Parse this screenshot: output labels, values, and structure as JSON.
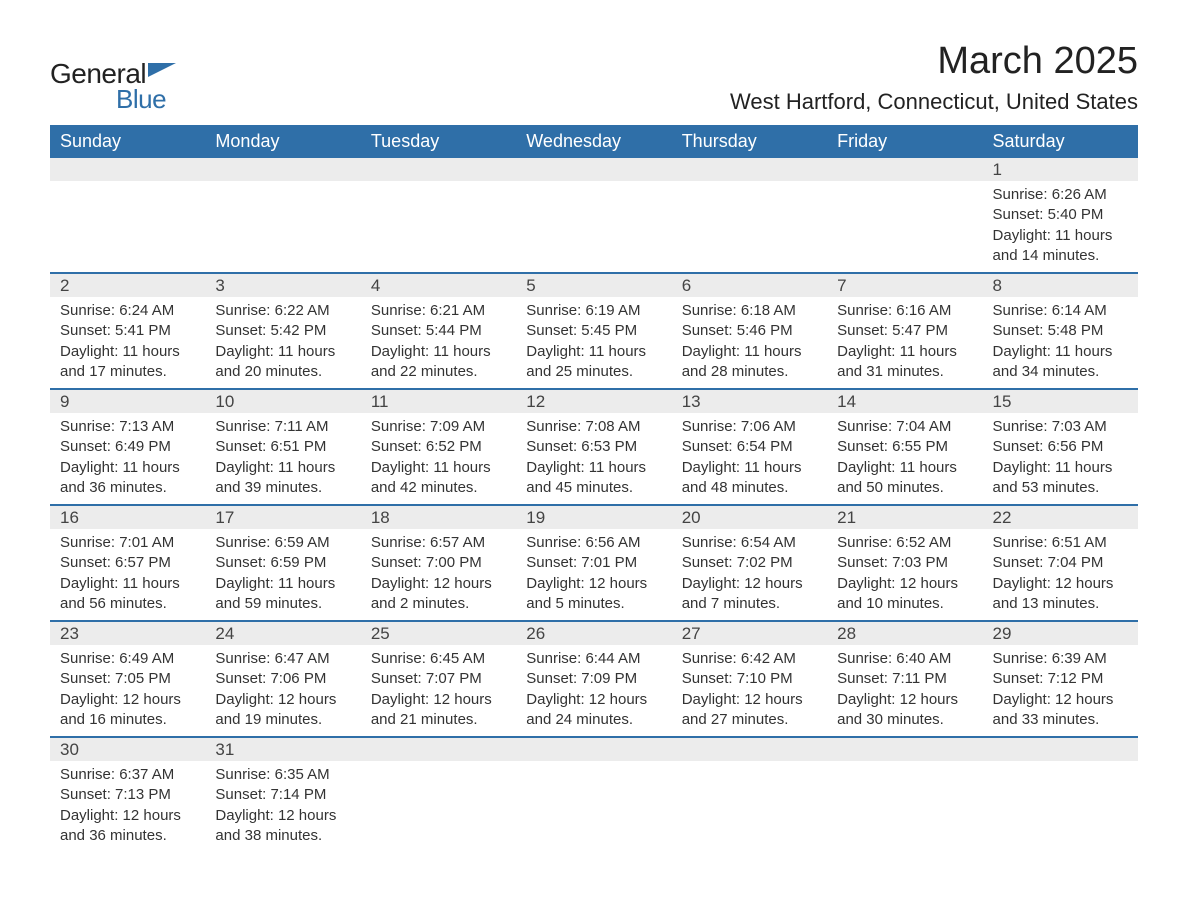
{
  "logo": {
    "textA": "General",
    "textB": "Blue",
    "flag_color": "#2f6fa8"
  },
  "title": "March 2025",
  "location": "West Hartford, Connecticut, United States",
  "header_bg": "#2f6fa8",
  "header_fg": "#ffffff",
  "daynum_bg": "#ececec",
  "row_border": "#2f6fa8",
  "days_header": [
    "Sunday",
    "Monday",
    "Tuesday",
    "Wednesday",
    "Thursday",
    "Friday",
    "Saturday"
  ],
  "weeks": [
    {
      "nums": [
        "",
        "",
        "",
        "",
        "",
        "",
        "1"
      ],
      "cells": [
        "",
        "",
        "",
        "",
        "",
        "",
        "Sunrise: 6:26 AM\nSunset: 5:40 PM\nDaylight: 11 hours and 14 minutes."
      ]
    },
    {
      "nums": [
        "2",
        "3",
        "4",
        "5",
        "6",
        "7",
        "8"
      ],
      "cells": [
        "Sunrise: 6:24 AM\nSunset: 5:41 PM\nDaylight: 11 hours and 17 minutes.",
        "Sunrise: 6:22 AM\nSunset: 5:42 PM\nDaylight: 11 hours and 20 minutes.",
        "Sunrise: 6:21 AM\nSunset: 5:44 PM\nDaylight: 11 hours and 22 minutes.",
        "Sunrise: 6:19 AM\nSunset: 5:45 PM\nDaylight: 11 hours and 25 minutes.",
        "Sunrise: 6:18 AM\nSunset: 5:46 PM\nDaylight: 11 hours and 28 minutes.",
        "Sunrise: 6:16 AM\nSunset: 5:47 PM\nDaylight: 11 hours and 31 minutes.",
        "Sunrise: 6:14 AM\nSunset: 5:48 PM\nDaylight: 11 hours and 34 minutes."
      ]
    },
    {
      "nums": [
        "9",
        "10",
        "11",
        "12",
        "13",
        "14",
        "15"
      ],
      "cells": [
        "Sunrise: 7:13 AM\nSunset: 6:49 PM\nDaylight: 11 hours and 36 minutes.",
        "Sunrise: 7:11 AM\nSunset: 6:51 PM\nDaylight: 11 hours and 39 minutes.",
        "Sunrise: 7:09 AM\nSunset: 6:52 PM\nDaylight: 11 hours and 42 minutes.",
        "Sunrise: 7:08 AM\nSunset: 6:53 PM\nDaylight: 11 hours and 45 minutes.",
        "Sunrise: 7:06 AM\nSunset: 6:54 PM\nDaylight: 11 hours and 48 minutes.",
        "Sunrise: 7:04 AM\nSunset: 6:55 PM\nDaylight: 11 hours and 50 minutes.",
        "Sunrise: 7:03 AM\nSunset: 6:56 PM\nDaylight: 11 hours and 53 minutes."
      ]
    },
    {
      "nums": [
        "16",
        "17",
        "18",
        "19",
        "20",
        "21",
        "22"
      ],
      "cells": [
        "Sunrise: 7:01 AM\nSunset: 6:57 PM\nDaylight: 11 hours and 56 minutes.",
        "Sunrise: 6:59 AM\nSunset: 6:59 PM\nDaylight: 11 hours and 59 minutes.",
        "Sunrise: 6:57 AM\nSunset: 7:00 PM\nDaylight: 12 hours and 2 minutes.",
        "Sunrise: 6:56 AM\nSunset: 7:01 PM\nDaylight: 12 hours and 5 minutes.",
        "Sunrise: 6:54 AM\nSunset: 7:02 PM\nDaylight: 12 hours and 7 minutes.",
        "Sunrise: 6:52 AM\nSunset: 7:03 PM\nDaylight: 12 hours and 10 minutes.",
        "Sunrise: 6:51 AM\nSunset: 7:04 PM\nDaylight: 12 hours and 13 minutes."
      ]
    },
    {
      "nums": [
        "23",
        "24",
        "25",
        "26",
        "27",
        "28",
        "29"
      ],
      "cells": [
        "Sunrise: 6:49 AM\nSunset: 7:05 PM\nDaylight: 12 hours and 16 minutes.",
        "Sunrise: 6:47 AM\nSunset: 7:06 PM\nDaylight: 12 hours and 19 minutes.",
        "Sunrise: 6:45 AM\nSunset: 7:07 PM\nDaylight: 12 hours and 21 minutes.",
        "Sunrise: 6:44 AM\nSunset: 7:09 PM\nDaylight: 12 hours and 24 minutes.",
        "Sunrise: 6:42 AM\nSunset: 7:10 PM\nDaylight: 12 hours and 27 minutes.",
        "Sunrise: 6:40 AM\nSunset: 7:11 PM\nDaylight: 12 hours and 30 minutes.",
        "Sunrise: 6:39 AM\nSunset: 7:12 PM\nDaylight: 12 hours and 33 minutes."
      ]
    },
    {
      "nums": [
        "30",
        "31",
        "",
        "",
        "",
        "",
        ""
      ],
      "cells": [
        "Sunrise: 6:37 AM\nSunset: 7:13 PM\nDaylight: 12 hours and 36 minutes.",
        "Sunrise: 6:35 AM\nSunset: 7:14 PM\nDaylight: 12 hours and 38 minutes.",
        "",
        "",
        "",
        "",
        ""
      ]
    }
  ]
}
